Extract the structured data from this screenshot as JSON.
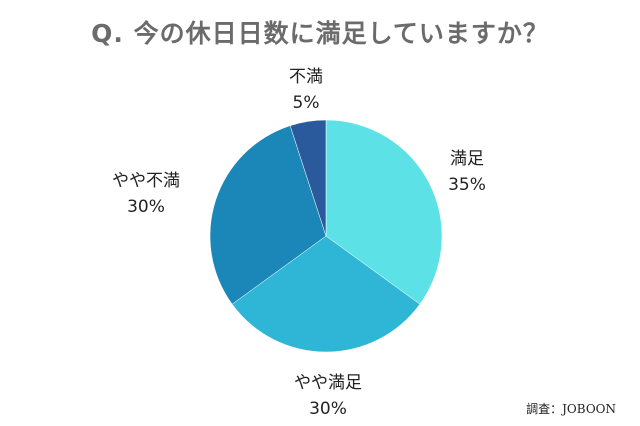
{
  "chart_data": {
    "type": "pie",
    "title": "Q. 今の休日日数に満足していますか？",
    "slices": [
      {
        "label": "満足",
        "value": 35,
        "value_label": "35%",
        "color": "#5ce1e6"
      },
      {
        "label": "やや満足",
        "value": 30,
        "value_label": "30%",
        "color": "#2fb5d6"
      },
      {
        "label": "やや不満",
        "value": 30,
        "value_label": "30%",
        "color": "#1a87b8"
      },
      {
        "label": "不満",
        "value": 5,
        "value_label": "5%",
        "color": "#2a5a9b"
      }
    ],
    "start": "12 o'clock",
    "direction": "clockwise"
  },
  "source": "調査：JOBOON"
}
